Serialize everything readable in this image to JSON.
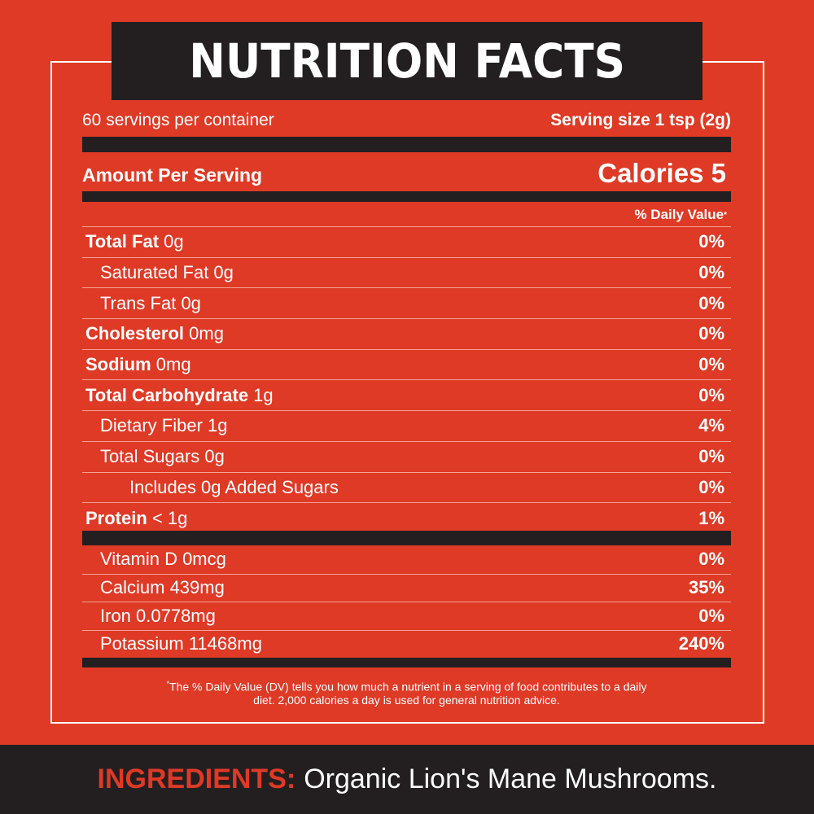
{
  "title": "NUTRITION FACTS",
  "servings": {
    "per_container": "60 servings per container",
    "serving_size": "Serving size 1 tsp (2g)"
  },
  "amount": {
    "label": "Amount Per Serving",
    "calories": "Calories 5"
  },
  "dv_header": "% Daily Value",
  "dv_asterisk": "*",
  "nutrients": [
    {
      "name": "Total Fat",
      "amount": " 0g",
      "dv": "0%",
      "bold": true,
      "indent": 0
    },
    {
      "name": "Saturated Fat",
      "amount": " 0g",
      "dv": "0%",
      "bold": false,
      "indent": 1
    },
    {
      "name": "Trans Fat",
      "amount": " 0g",
      "dv": "0%",
      "bold": false,
      "indent": 1
    },
    {
      "name": "Cholesterol",
      "amount": " 0mg",
      "dv": "0%",
      "bold": true,
      "indent": 0
    },
    {
      "name": "Sodium",
      "amount": " 0mg",
      "dv": "0%",
      "bold": true,
      "indent": 0
    },
    {
      "name": "Total Carbohydrate",
      "amount": " 1g",
      "dv": "0%",
      "bold": true,
      "indent": 0
    },
    {
      "name": "Dietary Fiber",
      "amount": " 1g",
      "dv": "4%",
      "bold": false,
      "indent": 1
    },
    {
      "name": "Total Sugars",
      "amount": " 0g",
      "dv": "0%",
      "bold": false,
      "indent": 1
    },
    {
      "name": "Includes 0g Added Sugars",
      "amount": "",
      "dv": "0%",
      "bold": false,
      "indent": 2
    },
    {
      "name": "Protein",
      "amount": " < 1g",
      "dv": "1%",
      "bold": true,
      "indent": 0
    }
  ],
  "vitamins": [
    {
      "name": "Vitamin D 0mcg",
      "dv": "0%"
    },
    {
      "name": "Calcium 439mg",
      "dv": "35%"
    },
    {
      "name": "Iron 0.0778mg",
      "dv": "0%"
    },
    {
      "name": "Potassium 11468mg",
      "dv": "240%"
    }
  ],
  "footnote": {
    "asterisk": "*",
    "line1": "The % Daily Value (DV) tells you how much a nutrient in a serving of food contributes to a daily",
    "line2": "diet. 2,000 calories a day is used for general nutrition advice."
  },
  "ingredients": {
    "label": "INGREDIENTS:",
    "value": "Organic Lion's Mane Mushrooms."
  },
  "colors": {
    "background_red": "#DE3A26",
    "dark": "#231F20",
    "text": "#FFFFFF",
    "divider": "#F0A492"
  }
}
